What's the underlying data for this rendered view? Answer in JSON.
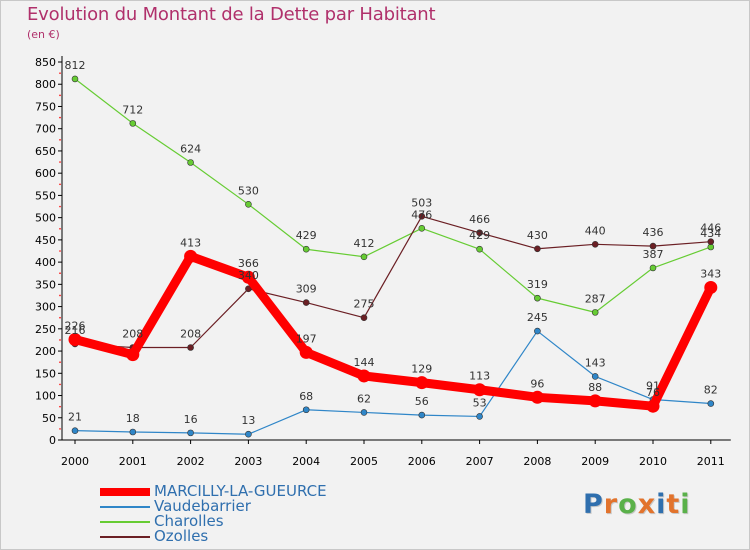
{
  "title": "Evolution du Montant de la Dette par Habitant",
  "subtitle": "(en €)",
  "logo": {
    "text": "Proxiti",
    "letter_colors": [
      "#2f6fae",
      "#e2732c",
      "#5ab14a",
      "#e2732c",
      "#2f6fae",
      "#e2732c",
      "#5ab14a"
    ]
  },
  "chart_data": {
    "type": "line",
    "title": "Evolution du Montant de la Dette par Habitant",
    "subtitle": "(en €)",
    "categories": [
      "2000",
      "2001",
      "2002",
      "2003",
      "2004",
      "2005",
      "2006",
      "2007",
      "2008",
      "2009",
      "2010",
      "2011"
    ],
    "ylim": [
      0,
      850
    ],
    "yticks": [
      "0",
      "50",
      "100",
      "150",
      "200",
      "250",
      "300",
      "350",
      "400",
      "450",
      "500",
      "550",
      "600",
      "650",
      "700",
      "750",
      "800",
      "850"
    ],
    "grid": false,
    "legend_position": "bottom-left",
    "series": [
      {
        "name": "MARCILLY-LA-GUEURCE",
        "color": "#ff0000",
        "values": [
          226,
          192,
          413,
          366,
          197,
          144,
          129,
          113,
          96,
          88,
          76,
          343
        ],
        "labels": [
          "226",
          "",
          "413",
          "366",
          "197",
          "144",
          "129",
          "113",
          "96",
          "88",
          "76",
          "343"
        ]
      },
      {
        "name": "Vaudebarrier",
        "color": "#2f86c8",
        "values": [
          21,
          18,
          16,
          13,
          68,
          62,
          56,
          53,
          245,
          143,
          91,
          82
        ],
        "labels": [
          "21",
          "18",
          "16",
          "13",
          "68",
          "62",
          "56",
          "53",
          "245",
          "143",
          "91",
          "82"
        ]
      },
      {
        "name": "Charolles",
        "color": "#66cc33",
        "values": [
          812,
          712,
          624,
          530,
          429,
          412,
          476,
          429,
          319,
          287,
          387,
          434
        ],
        "labels": [
          "812",
          "712",
          "624",
          "530",
          "429",
          "412",
          "476",
          "429",
          "319",
          "287",
          "387",
          "434"
        ]
      },
      {
        "name": "Ozolles",
        "color": "#6b1f24",
        "values": [
          216,
          208,
          208,
          340,
          309,
          275,
          503,
          466,
          430,
          440,
          436,
          446
        ],
        "labels": [
          "216",
          "208",
          "208",
          "340",
          "309",
          "275",
          "503",
          "466",
          "430",
          "440",
          "436",
          "446"
        ]
      }
    ]
  }
}
